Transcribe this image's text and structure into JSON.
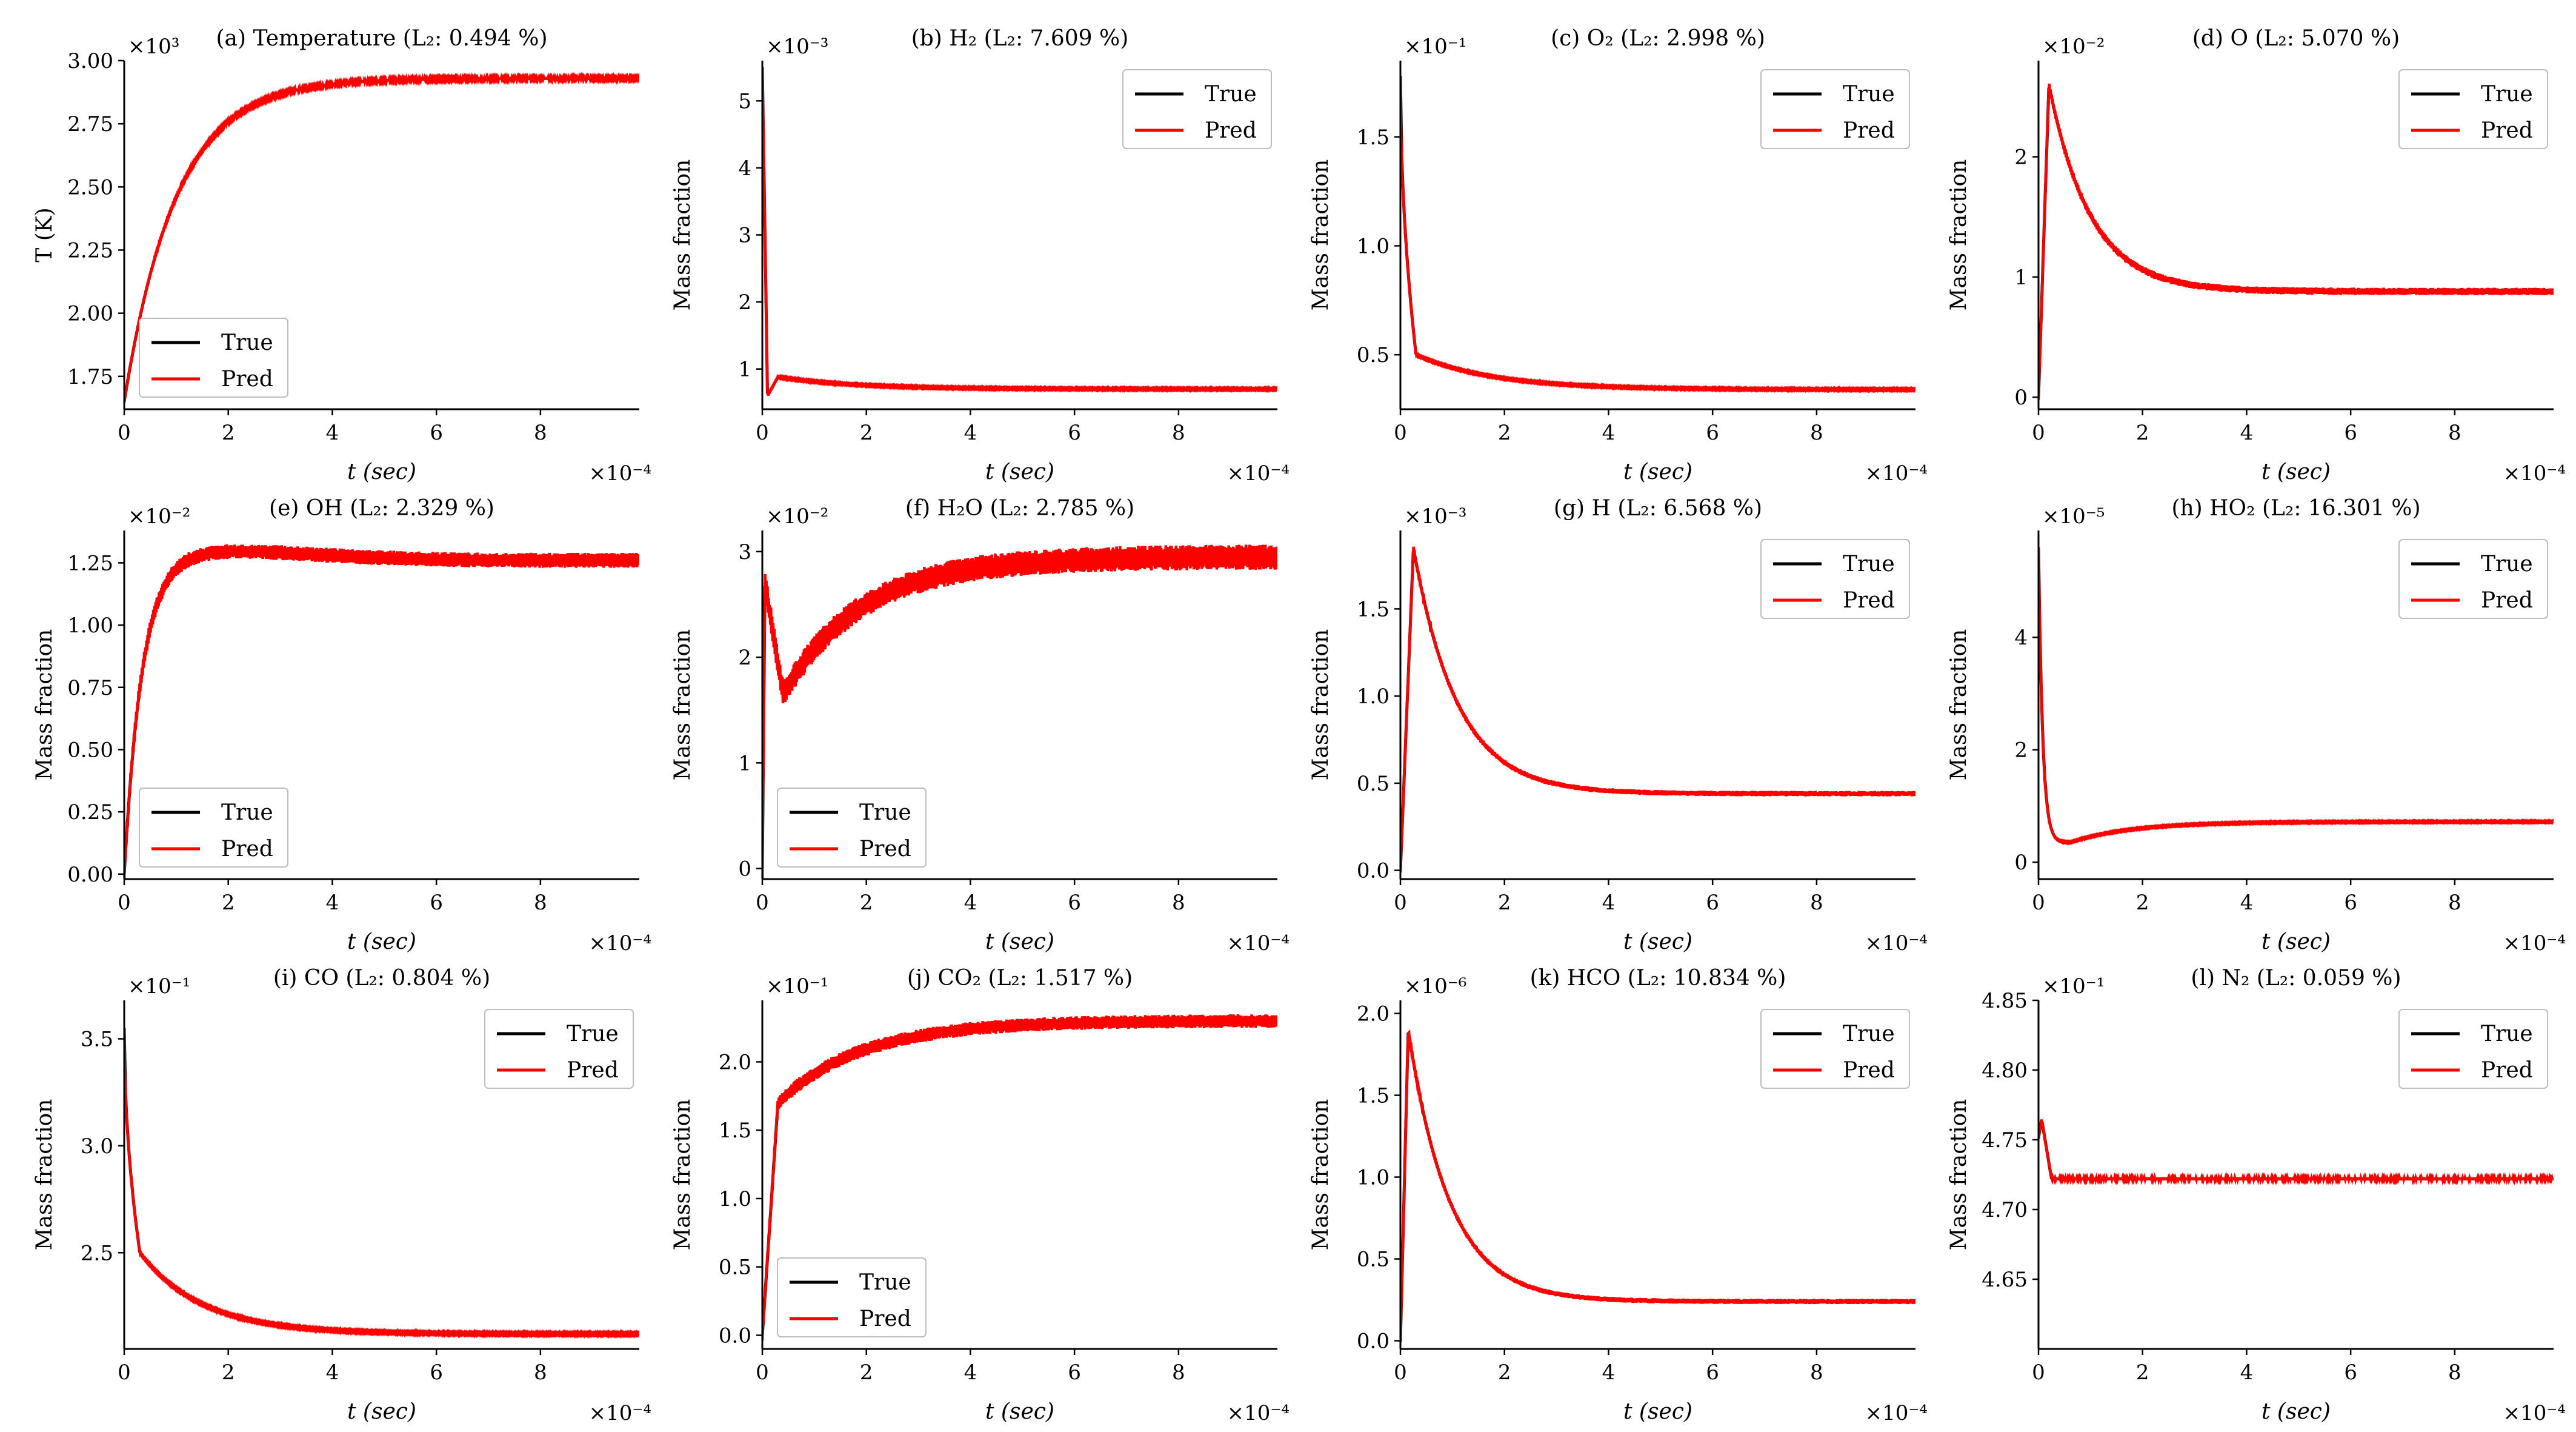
{
  "figure": {
    "xlabel": "t (sec)",
    "xticks": [
      "0",
      "2",
      "4",
      "6",
      "8"
    ],
    "x_exponent": "×10⁻⁴",
    "series_names": [
      "True",
      "Pred"
    ],
    "colors": {
      "true": "#000000",
      "pred": "#ff0000"
    }
  },
  "chart_data": [
    {
      "type": "line",
      "title": "(a) Temperature (L₂: 0.494 %)",
      "ylabel": "T (K)",
      "y_exponent": "×10³",
      "ylim": [
        1.62,
        3.0
      ],
      "yticks": [
        "1.75",
        "2.00",
        "2.25",
        "2.50",
        "2.75",
        "3.00"
      ],
      "xlim": [
        0,
        9.9
      ],
      "legend": "lower-left",
      "shape": {
        "kind": "rise",
        "y0": 1.65,
        "yend": 2.93,
        "tau": 1.0,
        "spike": 0,
        "spike_t": 0.1,
        "noise": 0.005
      },
      "series": [
        {
          "name": "True"
        },
        {
          "name": "Pred"
        }
      ]
    },
    {
      "type": "line",
      "title": "(b) H₂ (L₂: 7.609 %)",
      "ylabel": "Mass fraction",
      "y_exponent": "×10⁻³",
      "ylim": [
        0.4,
        5.6
      ],
      "yticks": [
        "1",
        "2",
        "3",
        "4",
        "5"
      ],
      "xlim": [
        0,
        9.9
      ],
      "legend": "upper-right",
      "shape": {
        "kind": "spike-drop",
        "y0": 5.5,
        "ymin": 0.6,
        "yend": 0.7,
        "bump": 0.88,
        "tau": 1.5,
        "noise": 0.01
      },
      "series": [
        {
          "name": "True"
        },
        {
          "name": "Pred"
        }
      ]
    },
    {
      "type": "line",
      "title": "(c) O₂ (L₂: 2.998 %)",
      "ylabel": "Mass fraction",
      "y_exponent": "×10⁻¹",
      "ylim": [
        0.25,
        1.85
      ],
      "yticks": [
        "0.5",
        "1.0",
        "1.5"
      ],
      "xlim": [
        0,
        9.9
      ],
      "legend": "upper-right",
      "shape": {
        "kind": "drop-decay",
        "y0": 1.78,
        "ykink": 0.5,
        "yend": 0.34,
        "tau": 1.5,
        "noise": 0.003
      },
      "series": [
        {
          "name": "True"
        },
        {
          "name": "Pred"
        }
      ]
    },
    {
      "type": "line",
      "title": "(d) O (L₂: 5.070 %)",
      "ylabel": "Mass fraction",
      "y_exponent": "×10⁻²",
      "ylim": [
        -0.1,
        2.8
      ],
      "yticks": [
        "0",
        "1",
        "2"
      ],
      "xlim": [
        0,
        9.9
      ],
      "legend": "upper-right",
      "shape": {
        "kind": "peak-decay",
        "y0": 0.0,
        "ypeak": 2.6,
        "tpeak": 0.2,
        "yend": 0.88,
        "tau": 0.8,
        "noise": 0.03
      },
      "series": [
        {
          "name": "True"
        },
        {
          "name": "Pred"
        }
      ]
    },
    {
      "type": "line",
      "title": "(e) OH (L₂: 2.329 %)",
      "ylabel": "Mass fraction",
      "y_exponent": "×10⁻²",
      "ylim": [
        -0.02,
        1.38
      ],
      "yticks": [
        "0.00",
        "0.25",
        "0.50",
        "0.75",
        "1.00",
        "1.25"
      ],
      "xlim": [
        0,
        9.9
      ],
      "legend": "lower-left",
      "shape": {
        "kind": "rise-overshoot",
        "y0": 0.0,
        "ypeak": 1.3,
        "tpeak": 1.5,
        "yend": 1.26,
        "tau": 0.35,
        "noise": 0.03
      },
      "series": [
        {
          "name": "True"
        },
        {
          "name": "Pred"
        }
      ]
    },
    {
      "type": "line",
      "title": "(f) H₂O (L₂: 2.785 %)",
      "ylabel": "Mass fraction",
      "y_exponent": "×10⁻²",
      "ylim": [
        -0.1,
        3.2
      ],
      "yticks": [
        "0",
        "1",
        "2",
        "3"
      ],
      "xlim": [
        0,
        9.9
      ],
      "legend": "lower-left",
      "shape": {
        "kind": "dip-rise",
        "y0": 0.0,
        "yspike": 2.7,
        "ydip": 1.65,
        "yend": 2.95,
        "tau": 1.5,
        "noise": 0.12
      },
      "series": [
        {
          "name": "True"
        },
        {
          "name": "Pred"
        }
      ]
    },
    {
      "type": "line",
      "title": "(g) H (L₂: 6.568 %)",
      "ylabel": "Mass fraction",
      "y_exponent": "×10⁻³",
      "ylim": [
        -0.05,
        1.95
      ],
      "yticks": [
        "0.0",
        "0.5",
        "1.0",
        "1.5"
      ],
      "xlim": [
        0,
        9.9
      ],
      "legend": "upper-right",
      "shape": {
        "kind": "peak-decay",
        "y0": 0.0,
        "ypeak": 1.85,
        "tpeak": 0.25,
        "yend": 0.44,
        "tau": 0.85,
        "noise": 0.015
      },
      "series": [
        {
          "name": "True"
        },
        {
          "name": "Pred"
        }
      ]
    },
    {
      "type": "line",
      "title": "(h) HO₂ (L₂: 16.301 %)",
      "ylabel": "Mass fraction",
      "y_exponent": "×10⁻⁵",
      "ylim": [
        -0.3,
        5.9
      ],
      "yticks": [
        "0",
        "2",
        "4"
      ],
      "xlim": [
        0,
        9.9
      ],
      "legend": "upper-right",
      "shape": {
        "kind": "spike-dip-rise",
        "y0": 5.6,
        "ydip": 0.35,
        "tdip": 0.6,
        "yend": 0.72,
        "tau": 1.2,
        "noise": 0.01
      },
      "series": [
        {
          "name": "True"
        },
        {
          "name": "Pred"
        }
      ]
    },
    {
      "type": "line",
      "title": "(i) CO (L₂: 0.804 %)",
      "ylabel": "Mass fraction",
      "y_exponent": "×10⁻¹",
      "ylim": [
        2.05,
        3.68
      ],
      "yticks": [
        "2.5",
        "3.0",
        "3.5"
      ],
      "xlim": [
        0,
        9.9
      ],
      "legend": "upper-right",
      "shape": {
        "kind": "drop-decay",
        "y0": 3.55,
        "ykink": 2.5,
        "yend": 2.12,
        "tau": 1.2,
        "noise": 0.004
      },
      "series": [
        {
          "name": "True"
        },
        {
          "name": "Pred"
        }
      ]
    },
    {
      "type": "line",
      "title": "(j) CO₂ (L₂: 1.517 %)",
      "ylabel": "Mass fraction",
      "y_exponent": "×10⁻¹",
      "ylim": [
        -0.1,
        2.45
      ],
      "yticks": [
        "0.0",
        "0.5",
        "1.0",
        "1.5",
        "2.0"
      ],
      "xlim": [
        0,
        9.9
      ],
      "legend": "lower-left",
      "shape": {
        "kind": "jump-rise",
        "y0": 0.0,
        "yjump": 1.7,
        "yend": 2.3,
        "tau": 1.6,
        "noise": 0.05
      },
      "series": [
        {
          "name": "True"
        },
        {
          "name": "Pred"
        }
      ]
    },
    {
      "type": "line",
      "title": "(k) HCO (L₂: 10.834 %)",
      "ylabel": "Mass fraction",
      "y_exponent": "×10⁻⁶",
      "ylim": [
        -0.05,
        2.08
      ],
      "yticks": [
        "0.0",
        "0.5",
        "1.0",
        "1.5",
        "2.0"
      ],
      "xlim": [
        0,
        9.9
      ],
      "legend": "upper-right",
      "shape": {
        "kind": "peak-decay",
        "y0": 0.0,
        "ypeak": 1.9,
        "tpeak": 0.15,
        "yend": 0.24,
        "tau": 0.8,
        "noise": 0.015
      },
      "series": [
        {
          "name": "True"
        },
        {
          "name": "Pred"
        }
      ]
    },
    {
      "type": "line",
      "title": "(l) N₂ (L₂: 0.059 %)",
      "ylabel": "Mass fraction",
      "y_exponent": "×10⁻¹",
      "ylim": [
        4.6,
        4.85
      ],
      "yticks": [
        "4.65",
        "4.70",
        "4.75",
        "4.80",
        "4.85"
      ],
      "xlim": [
        0,
        9.9
      ],
      "legend": "upper-right",
      "shape": {
        "kind": "flat-spike",
        "y0": 4.722,
        "yspike": 4.765,
        "yend": 4.722,
        "noise": 0.001
      },
      "series": [
        {
          "name": "True"
        },
        {
          "name": "Pred"
        }
      ]
    }
  ]
}
